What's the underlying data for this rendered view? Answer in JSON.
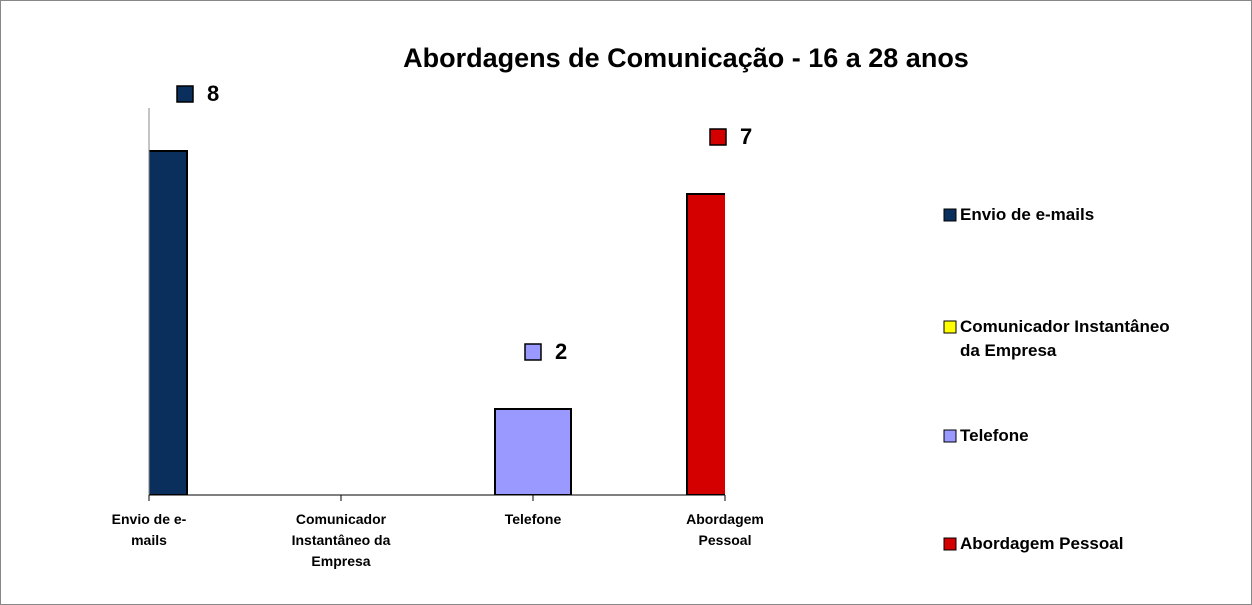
{
  "chart_data": {
    "type": "bar",
    "title": "Abordagens de Comunicação - 16 a 28 anos",
    "categories": [
      "Envio de e-mails",
      "Comunicador Instantâneo da Empresa",
      "Telefone",
      "Abordagem Pessoal"
    ],
    "values": [
      8,
      null,
      2,
      7
    ],
    "colors": [
      "#0b2f5c",
      "#ffff00",
      "#9999ff",
      "#d40000"
    ],
    "ylim": [
      0,
      9
    ],
    "legend": "right"
  }
}
